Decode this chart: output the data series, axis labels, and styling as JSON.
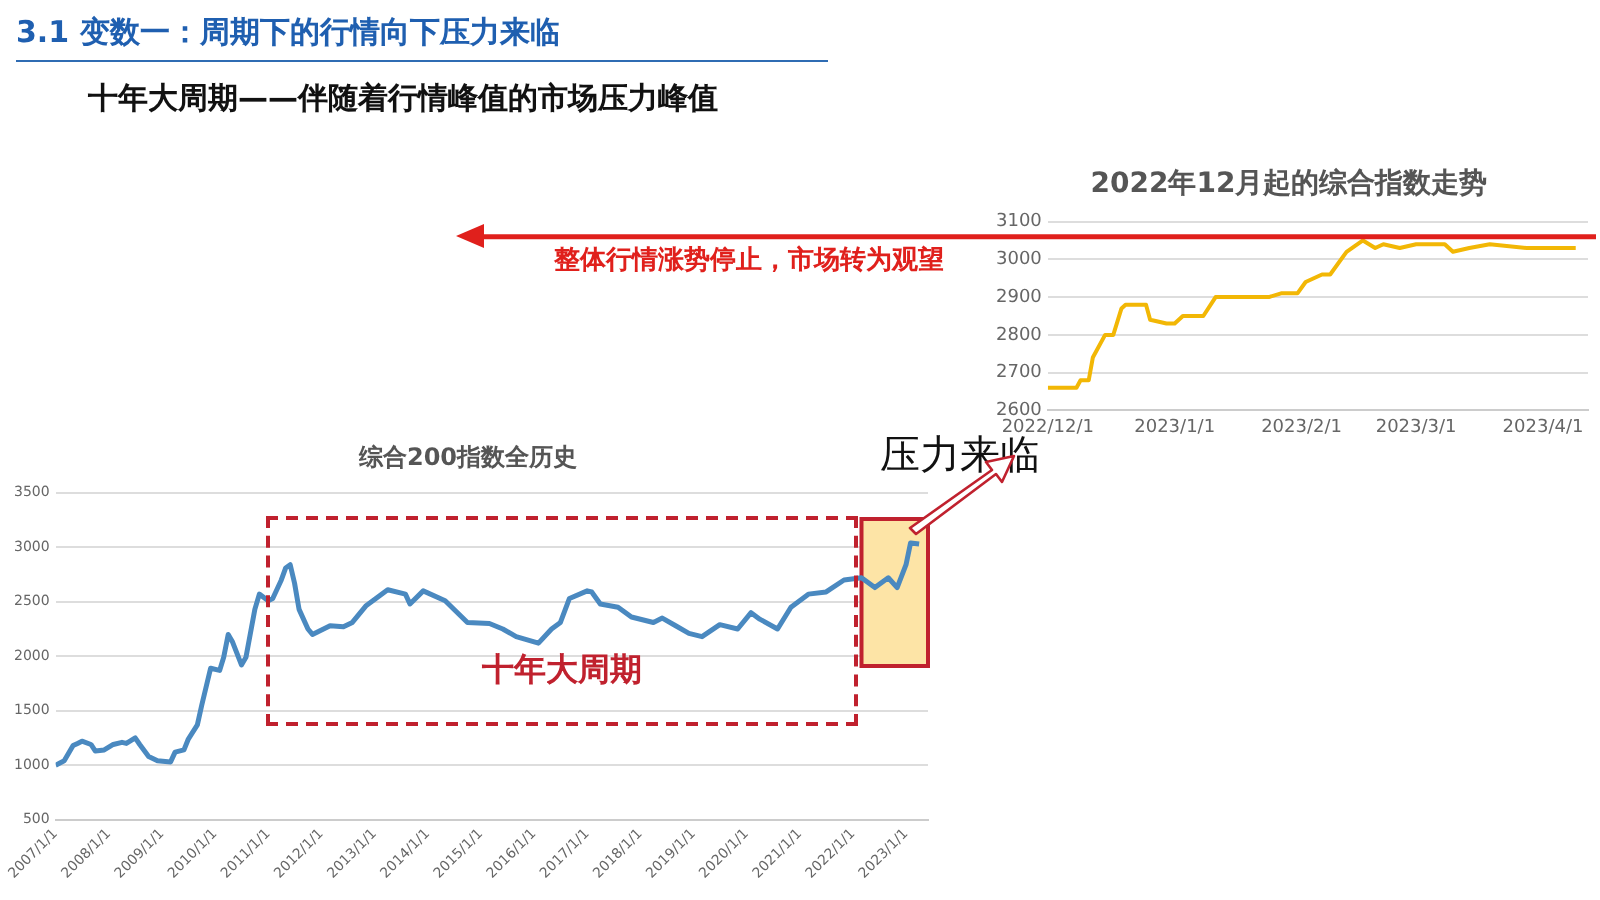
{
  "chart_data": [
    {
      "type": "line",
      "title": "综合200指数全历史",
      "annotations": [
        "3.1  变数一：周期下的行情向下压力来临",
        "十年大周期——伴随着行情峰值的市场压力峰值",
        "压力来临",
        "十年大周期"
      ],
      "x": [
        "2007-01",
        "2007-03",
        "2007-05",
        "2007-06",
        "2007-07",
        "2007-09",
        "2007-10",
        "2007-12",
        "2008-02",
        "2008-04",
        "2008-05",
        "2008-07",
        "2008-08",
        "2008-10",
        "2008-12",
        "2009-03",
        "2009-04",
        "2009-06",
        "2009-07",
        "2009-09",
        "2009-10",
        "2009-12",
        "2010-02",
        "2010-03",
        "2010-04",
        "2010-05",
        "2010-07",
        "2010-08",
        "2010-10",
        "2010-11",
        "2011-01",
        "2011-02",
        "2011-04",
        "2011-05",
        "2011-06",
        "2011-07",
        "2011-08",
        "2011-10",
        "2011-11",
        "2012-03",
        "2012-06",
        "2012-08",
        "2012-11",
        "2013-04",
        "2013-08",
        "2013-09",
        "2013-12",
        "2014-05",
        "2014-10",
        "2015-03",
        "2015-06",
        "2015-09",
        "2016-02",
        "2016-05",
        "2016-07",
        "2016-09",
        "2017-01",
        "2017-02",
        "2017-04",
        "2017-08",
        "2017-11",
        "2018-04",
        "2018-06",
        "2018-09",
        "2018-12",
        "2019-03",
        "2019-07",
        "2019-11",
        "2020-02",
        "2020-04",
        "2020-08",
        "2020-11",
        "2021-03",
        "2021-07",
        "2021-11",
        "2022-03",
        "2022-06",
        "2022-09",
        "2022-11",
        "2023-01",
        "2023-02",
        "2023-04"
      ],
      "series": [
        {
          "color": "#4a89c0",
          "values": [
            1000,
            1040,
            1180,
            1200,
            1220,
            1190,
            1130,
            1140,
            1190,
            1210,
            1200,
            1250,
            1190,
            1080,
            1040,
            1030,
            1120,
            1140,
            1240,
            1370,
            1550,
            1890,
            1870,
            1990,
            2200,
            2130,
            1920,
            1990,
            2430,
            2570,
            2510,
            2530,
            2700,
            2810,
            2840,
            2670,
            2430,
            2250,
            2200,
            2280,
            2270,
            2310,
            2460,
            2610,
            2570,
            2480,
            2600,
            2510,
            2310,
            2300,
            2250,
            2180,
            2120,
            2250,
            2310,
            2530,
            2600,
            2590,
            2480,
            2450,
            2360,
            2310,
            2350,
            2280,
            2210,
            2180,
            2290,
            2250,
            2400,
            2340,
            2250,
            2450,
            2570,
            2590,
            2700,
            2720,
            2630,
            2720,
            2630,
            2840,
            3040,
            3030
          ]
        }
      ],
      "xlim": [
        "2007-01-01",
        "2023-06-01"
      ],
      "xticks": [
        {
          "value": "2007-01-01",
          "label": "2007/1/1"
        },
        {
          "value": "2008-01-01",
          "label": "2008/1/1"
        },
        {
          "value": "2009-01-01",
          "label": "2009/1/1"
        },
        {
          "value": "2010-01-01",
          "label": "2010/1/1"
        },
        {
          "value": "2011-01-01",
          "label": "2011/1/1"
        },
        {
          "value": "2012-01-01",
          "label": "2012/1/1"
        },
        {
          "value": "2013-01-01",
          "label": "2013/1/1"
        },
        {
          "value": "2014-01-01",
          "label": "2014/1/1"
        },
        {
          "value": "2015-01-01",
          "label": "2015/1/1"
        },
        {
          "value": "2016-01-01",
          "label": "2016/1/1"
        },
        {
          "value": "2017-01-01",
          "label": "2017/1/1"
        },
        {
          "value": "2018-01-01",
          "label": "2018/1/1"
        },
        {
          "value": "2019-01-01",
          "label": "2019/1/1"
        },
        {
          "value": "2020-01-01",
          "label": "2020/1/1"
        },
        {
          "value": "2021-01-01",
          "label": "2021/1/1"
        },
        {
          "value": "2022-01-01",
          "label": "2022/1/1"
        },
        {
          "value": "2023-01-01",
          "label": "2023/1/1"
        }
      ],
      "ylim": [
        500,
        3500
      ],
      "yticks": [
        500,
        1000,
        1500,
        2000,
        2500,
        3000,
        3500
      ],
      "grid": "y",
      "legend": false,
      "bands": [
        {
          "axis": "x",
          "from": "2022-03-01",
          "to": "2023-06-01",
          "color": "#fde4a6"
        }
      ]
    },
    {
      "type": "line",
      "title": "2022年12月起的综合指数走势",
      "x": [
        "2022-12-01",
        "2022-12-08",
        "2022-12-09",
        "2022-12-11",
        "2022-12-12",
        "2022-12-15",
        "2022-12-17",
        "2022-12-19",
        "2022-12-20",
        "2022-12-25",
        "2022-12-26",
        "2022-12-30",
        "2023-01-01",
        "2023-01-03",
        "2023-01-08",
        "2023-01-11",
        "2023-01-24",
        "2023-01-27",
        "2023-01-31",
        "2023-02-02",
        "2023-02-06",
        "2023-02-08",
        "2023-02-12",
        "2023-02-16",
        "2023-02-19",
        "2023-02-21",
        "2023-02-25",
        "2023-03-01",
        "2023-03-08",
        "2023-03-10",
        "2023-03-14",
        "2023-03-19",
        "2023-03-28",
        "2023-04-02",
        "2023-04-09"
      ],
      "series": [
        {
          "color": "#f2b705",
          "values": [
            2660,
            2660,
            2680,
            2680,
            2740,
            2800,
            2800,
            2870,
            2880,
            2880,
            2840,
            2830,
            2830,
            2850,
            2850,
            2900,
            2900,
            2910,
            2910,
            2940,
            2960,
            2960,
            3020,
            3050,
            3030,
            3040,
            3030,
            3040,
            3040,
            3020,
            3030,
            3040,
            3030,
            3030,
            3030
          ]
        }
      ],
      "xlim": [
        "2022-12-01",
        "2023-04-12"
      ],
      "xticks": [
        {
          "value": "2022-12-01",
          "label": "2022/12/1"
        },
        {
          "value": "2023-01-01",
          "label": "2023/1/1"
        },
        {
          "value": "2023-02-01",
          "label": "2023/2/1"
        },
        {
          "value": "2023-03-01",
          "label": "2023/3/1"
        },
        {
          "value": "2023-04-01",
          "label": "2023/4/1"
        }
      ],
      "ylim": [
        2600,
        3100
      ],
      "yticks": [
        2600,
        2700,
        2800,
        2900,
        3000,
        3100
      ],
      "grid": "y",
      "legend": false,
      "ref_lines": [
        {
          "axis": "y",
          "value": 3060,
          "label": "整体行情涨势停止，市场转为观望",
          "color": "#e0201c"
        }
      ]
    }
  ]
}
